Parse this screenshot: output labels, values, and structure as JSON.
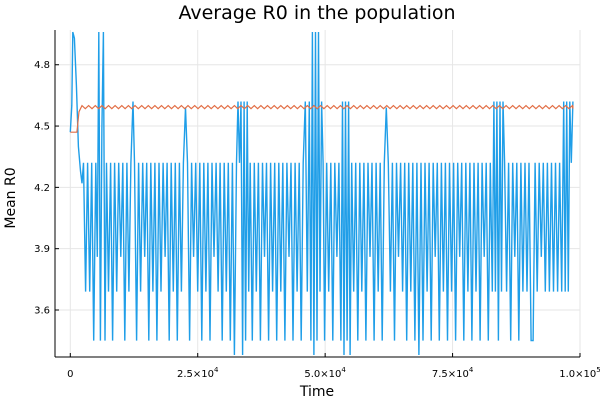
{
  "chart_data": {
    "type": "line",
    "title": "Average R0 in the population",
    "xlabel": "Time",
    "ylabel": "Mean R0",
    "xlim": [
      -3000,
      100000
    ],
    "ylim": [
      3.37,
      4.97
    ],
    "grid": true,
    "legend": "none",
    "x_ticks": [
      {
        "value": 0,
        "label": "0",
        "exp": ""
      },
      {
        "value": 25000,
        "label": "2.5×10",
        "exp": "4"
      },
      {
        "value": 50000,
        "label": "5.0×10",
        "exp": "4"
      },
      {
        "value": 75000,
        "label": "7.5×10",
        "exp": "4"
      },
      {
        "value": 100000,
        "label": "1.0×10",
        "exp": "5"
      }
    ],
    "y_ticks": [
      {
        "value": 3.6,
        "label": "3.6"
      },
      {
        "value": 3.9,
        "label": "3.9"
      },
      {
        "value": 4.2,
        "label": "4.2"
      },
      {
        "value": 4.5,
        "label": "4.5"
      },
      {
        "value": 4.8,
        "label": "4.8"
      }
    ],
    "series": [
      {
        "color": "#1f9ee8",
        "description": "oscillating mean R0 (blue)",
        "points": [
          [
            0,
            4.47
          ],
          [
            300,
            4.6
          ],
          [
            500,
            4.96
          ],
          [
            800,
            4.93
          ],
          [
            1200,
            4.7
          ],
          [
            1600,
            4.4
          ],
          [
            2000,
            4.28
          ],
          [
            2300,
            4.22
          ],
          [
            2600,
            4.32
          ],
          [
            3000,
            3.69
          ],
          [
            3400,
            4.32
          ],
          [
            3800,
            3.69
          ],
          [
            4200,
            4.32
          ],
          [
            4600,
            3.45
          ],
          [
            5000,
            4.32
          ],
          [
            5300,
            3.86
          ],
          [
            5600,
            4.96
          ],
          [
            5900,
            3.45
          ],
          [
            6200,
            4.49
          ],
          [
            6500,
            4.96
          ],
          [
            6800,
            3.45
          ],
          [
            7100,
            4.32
          ],
          [
            7500,
            3.69
          ],
          [
            7900,
            4.32
          ],
          [
            8300,
            3.45
          ],
          [
            8700,
            4.32
          ],
          [
            9100,
            3.69
          ],
          [
            9500,
            4.32
          ],
          [
            9900,
            3.86
          ],
          [
            10300,
            4.32
          ],
          [
            10700,
            3.45
          ],
          [
            11100,
            4.32
          ],
          [
            11500,
            3.69
          ],
          [
            11900,
            4.32
          ],
          [
            12300,
            4.62
          ],
          [
            12600,
            4.32
          ],
          [
            13000,
            3.45
          ],
          [
            13400,
            4.32
          ],
          [
            13800,
            3.69
          ],
          [
            14200,
            4.32
          ],
          [
            14600,
            3.86
          ],
          [
            15000,
            4.32
          ],
          [
            15400,
            3.45
          ],
          [
            15800,
            4.32
          ],
          [
            16200,
            3.69
          ],
          [
            16600,
            4.32
          ],
          [
            17000,
            3.45
          ],
          [
            17400,
            4.32
          ],
          [
            17800,
            3.69
          ],
          [
            18200,
            4.32
          ],
          [
            18600,
            3.86
          ],
          [
            19000,
            4.32
          ],
          [
            19400,
            3.45
          ],
          [
            19800,
            4.32
          ],
          [
            20200,
            3.69
          ],
          [
            20600,
            4.32
          ],
          [
            21000,
            3.45
          ],
          [
            21400,
            4.32
          ],
          [
            21800,
            3.69
          ],
          [
            22200,
            4.32
          ],
          [
            22600,
            4.59
          ],
          [
            23000,
            4.32
          ],
          [
            23400,
            3.45
          ],
          [
            23800,
            4.32
          ],
          [
            24200,
            3.86
          ],
          [
            24600,
            4.32
          ],
          [
            25000,
            3.69
          ],
          [
            25400,
            4.32
          ],
          [
            25800,
            3.45
          ],
          [
            26200,
            4.32
          ],
          [
            26600,
            3.69
          ],
          [
            27000,
            4.32
          ],
          [
            27400,
            3.45
          ],
          [
            27800,
            4.32
          ],
          [
            28200,
            3.86
          ],
          [
            28600,
            4.32
          ],
          [
            29000,
            3.69
          ],
          [
            29400,
            4.32
          ],
          [
            29800,
            3.45
          ],
          [
            30200,
            4.32
          ],
          [
            30600,
            3.69
          ],
          [
            31000,
            4.32
          ],
          [
            31400,
            3.45
          ],
          [
            31800,
            4.32
          ],
          [
            32200,
            3.38
          ],
          [
            32600,
            4.32
          ],
          [
            32900,
            4.62
          ],
          [
            33200,
            4.32
          ],
          [
            33500,
            4.62
          ],
          [
            33800,
            3.38
          ],
          [
            34100,
            4.62
          ],
          [
            34400,
            3.45
          ],
          [
            34700,
            4.62
          ],
          [
            35000,
            3.69
          ],
          [
            35300,
            4.32
          ],
          [
            35700,
            3.45
          ],
          [
            36100,
            4.32
          ],
          [
            36500,
            3.69
          ],
          [
            36900,
            4.32
          ],
          [
            37300,
            3.45
          ],
          [
            37700,
            4.32
          ],
          [
            38100,
            3.86
          ],
          [
            38500,
            4.32
          ],
          [
            38900,
            3.45
          ],
          [
            39300,
            4.32
          ],
          [
            39700,
            3.69
          ],
          [
            40100,
            4.32
          ],
          [
            40500,
            3.45
          ],
          [
            40900,
            4.32
          ],
          [
            41300,
            3.69
          ],
          [
            41700,
            4.32
          ],
          [
            42100,
            3.45
          ],
          [
            42500,
            4.32
          ],
          [
            42900,
            3.86
          ],
          [
            43300,
            4.32
          ],
          [
            43700,
            3.45
          ],
          [
            44100,
            4.32
          ],
          [
            44500,
            3.69
          ],
          [
            44900,
            4.32
          ],
          [
            45300,
            3.45
          ],
          [
            45700,
            4.32
          ],
          [
            46100,
            4.62
          ],
          [
            46500,
            3.69
          ],
          [
            46900,
            4.62
          ],
          [
            47200,
            3.45
          ],
          [
            47500,
            4.96
          ],
          [
            47800,
            3.38
          ],
          [
            48100,
            4.96
          ],
          [
            48400,
            3.45
          ],
          [
            48700,
            4.96
          ],
          [
            49000,
            3.69
          ],
          [
            49300,
            4.62
          ],
          [
            49600,
            4.32
          ],
          [
            49900,
            3.45
          ],
          [
            50300,
            4.32
          ],
          [
            50700,
            3.69
          ],
          [
            51100,
            4.32
          ],
          [
            51500,
            3.45
          ],
          [
            51900,
            4.32
          ],
          [
            52300,
            3.86
          ],
          [
            52700,
            4.32
          ],
          [
            53100,
            3.45
          ],
          [
            53400,
            4.62
          ],
          [
            53700,
            3.38
          ],
          [
            54000,
            4.62
          ],
          [
            54300,
            3.45
          ],
          [
            54600,
            4.62
          ],
          [
            54900,
            3.38
          ],
          [
            55200,
            4.32
          ],
          [
            55600,
            3.69
          ],
          [
            56000,
            4.32
          ],
          [
            56400,
            3.45
          ],
          [
            56800,
            4.32
          ],
          [
            57200,
            3.69
          ],
          [
            57600,
            4.32
          ],
          [
            58000,
            3.45
          ],
          [
            58400,
            4.32
          ],
          [
            58800,
            3.86
          ],
          [
            59200,
            4.32
          ],
          [
            59600,
            3.45
          ],
          [
            60000,
            4.32
          ],
          [
            60400,
            3.69
          ],
          [
            60800,
            4.32
          ],
          [
            61200,
            3.45
          ],
          [
            61600,
            4.32
          ],
          [
            62000,
            4.59
          ],
          [
            62400,
            4.32
          ],
          [
            62800,
            3.69
          ],
          [
            63200,
            4.32
          ],
          [
            63600,
            3.45
          ],
          [
            64000,
            4.32
          ],
          [
            64400,
            3.86
          ],
          [
            64800,
            4.32
          ],
          [
            65200,
            3.69
          ],
          [
            65600,
            4.32
          ],
          [
            66000,
            3.45
          ],
          [
            66400,
            4.32
          ],
          [
            66800,
            3.69
          ],
          [
            67200,
            4.32
          ],
          [
            67600,
            3.45
          ],
          [
            68000,
            4.32
          ],
          [
            68400,
            3.38
          ],
          [
            68800,
            4.32
          ],
          [
            69200,
            3.45
          ],
          [
            69600,
            4.32
          ],
          [
            70000,
            3.69
          ],
          [
            70400,
            4.32
          ],
          [
            70800,
            3.45
          ],
          [
            71200,
            4.32
          ],
          [
            71600,
            3.86
          ],
          [
            72000,
            4.32
          ],
          [
            72400,
            3.45
          ],
          [
            72800,
            4.32
          ],
          [
            73200,
            3.69
          ],
          [
            73600,
            4.32
          ],
          [
            74000,
            3.45
          ],
          [
            74400,
            4.32
          ],
          [
            74800,
            3.69
          ],
          [
            75200,
            4.32
          ],
          [
            75600,
            3.45
          ],
          [
            76000,
            4.32
          ],
          [
            76400,
            3.86
          ],
          [
            76800,
            4.32
          ],
          [
            77200,
            3.45
          ],
          [
            77600,
            4.32
          ],
          [
            78000,
            3.69
          ],
          [
            78400,
            4.32
          ],
          [
            78800,
            3.45
          ],
          [
            79200,
            4.32
          ],
          [
            79600,
            3.69
          ],
          [
            80000,
            4.32
          ],
          [
            80400,
            3.45
          ],
          [
            80800,
            4.32
          ],
          [
            81200,
            3.86
          ],
          [
            81600,
            4.32
          ],
          [
            82000,
            3.45
          ],
          [
            82400,
            4.32
          ],
          [
            82800,
            3.69
          ],
          [
            83100,
            4.62
          ],
          [
            83400,
            3.69
          ],
          [
            83700,
            4.62
          ],
          [
            84000,
            3.45
          ],
          [
            84300,
            4.62
          ],
          [
            84600,
            3.69
          ],
          [
            84900,
            4.62
          ],
          [
            85200,
            4.32
          ],
          [
            85600,
            3.69
          ],
          [
            86000,
            4.32
          ],
          [
            86400,
            3.45
          ],
          [
            86800,
            4.32
          ],
          [
            87200,
            3.86
          ],
          [
            87600,
            4.32
          ],
          [
            88000,
            3.45
          ],
          [
            88400,
            4.32
          ],
          [
            88800,
            3.69
          ],
          [
            89200,
            4.32
          ],
          [
            89600,
            3.69
          ],
          [
            90000,
            4.32
          ],
          [
            90400,
            3.45
          ],
          [
            90800,
            3.45
          ],
          [
            91200,
            4.32
          ],
          [
            91600,
            3.69
          ],
          [
            92000,
            4.32
          ],
          [
            92400,
            3.86
          ],
          [
            92800,
            4.32
          ],
          [
            93200,
            3.69
          ],
          [
            93600,
            4.32
          ],
          [
            94000,
            3.69
          ],
          [
            94400,
            4.32
          ],
          [
            94800,
            3.69
          ],
          [
            95200,
            4.32
          ],
          [
            95600,
            3.69
          ],
          [
            96000,
            4.32
          ],
          [
            96400,
            3.69
          ],
          [
            96800,
            4.62
          ],
          [
            97100,
            3.69
          ],
          [
            97400,
            4.62
          ],
          [
            97700,
            3.69
          ],
          [
            98000,
            4.62
          ],
          [
            98300,
            4.32
          ],
          [
            98600,
            4.62
          ]
        ]
      },
      {
        "color": "#e26f46",
        "description": "stable mean R0 (orange)",
        "points": [
          [
            0,
            4.47
          ],
          [
            1300,
            4.47
          ],
          [
            1700,
            4.57
          ],
          [
            2300,
            4.6
          ],
          [
            98600,
            4.6
          ]
        ],
        "ripple": {
          "amplitude": 0.015,
          "period": 1300,
          "start": 2300
        }
      }
    ]
  }
}
